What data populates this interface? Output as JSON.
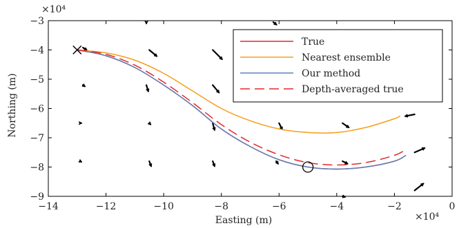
{
  "chart_data": {
    "type": "line",
    "xlabel": "Easting (m)",
    "ylabel": "Northing (m)",
    "x_exponent_label": "×10⁴",
    "y_exponent_label": "×10⁴",
    "xlim": [
      -14,
      0
    ],
    "ylim": [
      -9,
      -3
    ],
    "x_ticks": [
      -14,
      -12,
      -10,
      -8,
      -6,
      -4,
      -2,
      0
    ],
    "y_ticks": [
      -9,
      -8,
      -7,
      -6,
      -5,
      -4,
      -3
    ],
    "x_tick_labels": [
      "−14",
      "−12",
      "−10",
      "−8",
      "−6",
      "−4",
      "−2",
      "0"
    ],
    "y_tick_labels": [
      "−9",
      "−8",
      "−7",
      "−6",
      "−5",
      "−4",
      "−3"
    ],
    "grid": false,
    "legend_position": "top-right",
    "series": [
      {
        "name": "True",
        "color": "#e3262b",
        "style": "solid",
        "x": [
          -13.0,
          -12.0,
          -11.0,
          -10.0,
          -9.0,
          -8.0,
          -7.0,
          -6.0,
          -5.0,
          -4.0,
          -3.0,
          -2.0,
          -1.6
        ],
        "y": [
          -4.0,
          -4.2,
          -4.6,
          -5.2,
          -5.9,
          -6.7,
          -7.3,
          -7.75,
          -8.0,
          -8.07,
          -8.0,
          -7.8,
          -7.6
        ]
      },
      {
        "name": "Nearest ensemble",
        "color": "#f59d1a",
        "style": "solid",
        "x": [
          -13.0,
          -12.0,
          -11.0,
          -10.0,
          -9.0,
          -8.0,
          -7.0,
          -6.0,
          -5.0,
          -4.0,
          -3.0,
          -2.0,
          -1.8
        ],
        "y": [
          -4.0,
          -4.1,
          -4.35,
          -4.8,
          -5.4,
          -6.0,
          -6.42,
          -6.7,
          -6.82,
          -6.82,
          -6.65,
          -6.35,
          -6.25
        ]
      },
      {
        "name": "Our method",
        "color": "#5f80b6",
        "style": "solid",
        "x": [
          -13.0,
          -12.0,
          -11.0,
          -10.0,
          -9.0,
          -8.0,
          -7.0,
          -6.0,
          -5.0,
          -4.0,
          -3.0,
          -2.0,
          -1.6
        ],
        "y": [
          -4.0,
          -4.2,
          -4.6,
          -5.2,
          -5.9,
          -6.7,
          -7.3,
          -7.75,
          -8.0,
          -8.07,
          -8.0,
          -7.8,
          -7.6
        ]
      },
      {
        "name": "Depth-averaged true",
        "color": "#e3262b",
        "style": "dashed",
        "x": [
          -13.0,
          -12.0,
          -11.0,
          -10.0,
          -9.0,
          -8.0,
          -7.0,
          -6.0,
          -5.0,
          -4.0,
          -3.0,
          -2.0,
          -1.6
        ],
        "y": [
          -4.0,
          -4.15,
          -4.52,
          -5.1,
          -5.8,
          -6.55,
          -7.15,
          -7.58,
          -7.85,
          -7.93,
          -7.85,
          -7.6,
          -7.4
        ]
      }
    ],
    "markers": [
      {
        "name": "start",
        "symbol": "x",
        "x": -13.0,
        "y": -4.0
      },
      {
        "name": "circle",
        "symbol": "circle",
        "x": -5.0,
        "y": -8.0
      }
    ],
    "vector_field": [
      {
        "x": -12.8,
        "y": -3.92,
        "u": 0.6,
        "v": -0.4
      },
      {
        "x": -10.6,
        "y": -3.05,
        "u": 0.0,
        "v": -0.2
      },
      {
        "x": -10.5,
        "y": -4.0,
        "u": 1.2,
        "v": -1.0
      },
      {
        "x": -8.3,
        "y": -4.0,
        "u": 1.5,
        "v": -1.5
      },
      {
        "x": -6.2,
        "y": -3.05,
        "u": 0.5,
        "v": -0.4
      },
      {
        "x": -12.8,
        "y": -5.2,
        "u": 0.3,
        "v": -0.2
      },
      {
        "x": -10.6,
        "y": -5.2,
        "u": 0.3,
        "v": -1.0
      },
      {
        "x": -8.3,
        "y": -5.2,
        "u": 1.0,
        "v": -1.2
      },
      {
        "x": -6.2,
        "y": -5.2,
        "u": 0.2,
        "v": -0.3
      },
      {
        "x": -12.9,
        "y": -6.5,
        "u": 0.2,
        "v": 0.0
      },
      {
        "x": -10.5,
        "y": -6.5,
        "u": 0.2,
        "v": -0.2
      },
      {
        "x": -8.3,
        "y": -6.5,
        "u": 0.3,
        "v": -1.1
      },
      {
        "x": -6.0,
        "y": -6.5,
        "u": 0.5,
        "v": -1.0
      },
      {
        "x": -3.8,
        "y": -6.5,
        "u": 1.0,
        "v": -0.7
      },
      {
        "x": -1.3,
        "y": -6.2,
        "u": -1.5,
        "v": -0.3
      },
      {
        "x": -12.9,
        "y": -7.8,
        "u": 0.2,
        "v": -0.1
      },
      {
        "x": -10.5,
        "y": -7.8,
        "u": 0.3,
        "v": -0.8
      },
      {
        "x": -8.3,
        "y": -7.8,
        "u": 0.3,
        "v": -0.8
      },
      {
        "x": -6.1,
        "y": -7.8,
        "u": 0.3,
        "v": -0.4
      },
      {
        "x": -3.8,
        "y": -7.8,
        "u": 0.8,
        "v": -0.4
      },
      {
        "x": -1.3,
        "y": -7.5,
        "u": 1.6,
        "v": 0.7
      },
      {
        "x": -3.8,
        "y": -9.0,
        "u": 0.4,
        "v": -0.1
      },
      {
        "x": -1.3,
        "y": -8.8,
        "u": 1.4,
        "v": 1.1
      }
    ]
  }
}
